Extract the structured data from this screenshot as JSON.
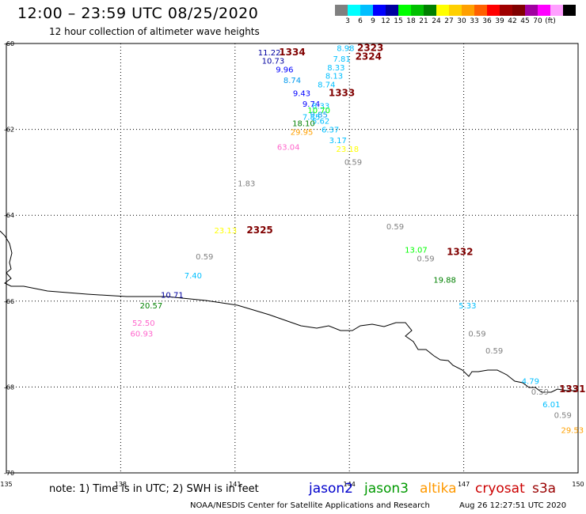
{
  "header": {
    "title": "12:00 – 23:59 UTC 08/25/2020",
    "subtitle": "12 hour collection of altimeter wave heights"
  },
  "legend": {
    "colors": [
      "#808080",
      "#00ffff",
      "#00bfff",
      "#0000ff",
      "#0000a0",
      "#00ff00",
      "#00c000",
      "#008000",
      "#ffff00",
      "#ffd000",
      "#ffa000",
      "#ff6000",
      "#ff0000",
      "#a00000",
      "#800000",
      "#a000a0",
      "#ff00ff",
      "#ffa0ff",
      "#000000"
    ],
    "labels": [
      "3",
      "6",
      "9",
      "12",
      "15",
      "18",
      "21",
      "24",
      "27",
      "30",
      "33",
      "36",
      "39",
      "42",
      "45",
      "70",
      "(ft)"
    ]
  },
  "footer": {
    "note": "note:  1) Time is in UTC;  2) SWH is in feet",
    "credit": "NOAA/NESDIS Center for Satellite Applications and Research",
    "timestamp": "Aug 26 12:27:51 UTC 2020",
    "missions": [
      {
        "name": "jason2",
        "color": "#0000cc"
      },
      {
        "name": "jason3",
        "color": "#009900"
      },
      {
        "name": "altika",
        "color": "#ff9900"
      },
      {
        "name": "cryosat",
        "color": "#cc0000"
      },
      {
        "name": "s3a",
        "color": "#990000"
      }
    ]
  },
  "chart_data": {
    "type": "scatter",
    "title": "12:00 – 23:59 UTC 08/25/2020",
    "subtitle": "12 hour collection of altimeter wave heights",
    "xlim": [
      135,
      150
    ],
    "ylim": [
      -70,
      -60
    ],
    "xticks": [
      "135",
      "138",
      "141",
      "144",
      "147",
      "150"
    ],
    "yticks": [
      "-60",
      "-62",
      "-64",
      "-66",
      "-68",
      "-70"
    ],
    "grid": true,
    "units": "ft",
    "swh_points": [
      {
        "lon": 141.9,
        "lat": -60.2,
        "value": "11.22",
        "color": "#0000a0"
      },
      {
        "lon": 142.0,
        "lat": -60.4,
        "value": "10.73",
        "color": "#0000a0"
      },
      {
        "lon": 142.3,
        "lat": -60.6,
        "value": "9.96",
        "color": "#0000ff"
      },
      {
        "lon": 142.5,
        "lat": -60.85,
        "value": "8.74",
        "color": "#0099ee"
      },
      {
        "lon": 142.75,
        "lat": -61.15,
        "value": "9.43",
        "color": "#0000ff"
      },
      {
        "lon": 143.0,
        "lat": -61.4,
        "value": "9.74",
        "color": "#0000ff"
      },
      {
        "lon": 143.25,
        "lat": -61.45,
        "value": "8.33",
        "color": "#00bfff"
      },
      {
        "lon": 143.2,
        "lat": -61.55,
        "value": "10.70",
        "color": "#00ff00"
      },
      {
        "lon": 143.2,
        "lat": -61.65,
        "value": "9.85",
        "color": "#0099ee"
      },
      {
        "lon": 143.0,
        "lat": -61.7,
        "value": "7.85",
        "color": "#00bfff"
      },
      {
        "lon": 143.25,
        "lat": -61.8,
        "value": "5.62",
        "color": "#00bfff"
      },
      {
        "lon": 142.8,
        "lat": -61.85,
        "value": "18.10",
        "color": "#008000"
      },
      {
        "lon": 143.5,
        "lat": -62.0,
        "value": "6.37",
        "color": "#00bfff"
      },
      {
        "lon": 142.75,
        "lat": -62.05,
        "value": "29.95",
        "color": "#ffa000"
      },
      {
        "lon": 143.7,
        "lat": -62.25,
        "value": "3.17",
        "color": "#00bfff"
      },
      {
        "lon": 142.4,
        "lat": -62.4,
        "value": "63.04",
        "color": "#ff66cc"
      },
      {
        "lon": 143.95,
        "lat": -62.45,
        "value": "23.18",
        "color": "#ffff00"
      },
      {
        "lon": 144.1,
        "lat": -62.75,
        "value": "0.59",
        "color": "#808080"
      },
      {
        "lon": 143.9,
        "lat": -60.1,
        "value": "8.98",
        "color": "#00bfff"
      },
      {
        "lon": 143.8,
        "lat": -60.35,
        "value": "7.81",
        "color": "#00bfff"
      },
      {
        "lon": 143.65,
        "lat": -60.55,
        "value": "8.33",
        "color": "#00bfff"
      },
      {
        "lon": 143.6,
        "lat": -60.75,
        "value": "8.13",
        "color": "#00bfff"
      },
      {
        "lon": 143.4,
        "lat": -60.95,
        "value": "8.74",
        "color": "#00bfff"
      },
      {
        "lon": 141.3,
        "lat": -63.25,
        "value": "1.83",
        "color": "#808080"
      },
      {
        "lon": 140.75,
        "lat": -64.35,
        "value": "23.13",
        "color": "#ffff00"
      },
      {
        "lon": 140.2,
        "lat": -64.95,
        "value": "0.59",
        "color": "#808080"
      },
      {
        "lon": 139.9,
        "lat": -65.4,
        "value": "7.40",
        "color": "#00bfff"
      },
      {
        "lon": 139.35,
        "lat": -65.85,
        "value": "10.71",
        "color": "#0000a0"
      },
      {
        "lon": 138.8,
        "lat": -66.1,
        "value": "20.57",
        "color": "#008000"
      },
      {
        "lon": 138.6,
        "lat": -66.5,
        "value": "52.50",
        "color": "#ff66cc"
      },
      {
        "lon": 138.55,
        "lat": -66.75,
        "value": "60.93",
        "color": "#ff66cc"
      },
      {
        "lon": 145.2,
        "lat": -64.25,
        "value": "0.59",
        "color": "#808080"
      },
      {
        "lon": 145.75,
        "lat": -64.8,
        "value": "13.07",
        "color": "#00ff00"
      },
      {
        "lon": 146.0,
        "lat": -65.0,
        "value": "0.59",
        "color": "#808080"
      },
      {
        "lon": 146.5,
        "lat": -65.5,
        "value": "19.88",
        "color": "#008000"
      },
      {
        "lon": 147.1,
        "lat": -66.1,
        "value": "5.33",
        "color": "#00bfff"
      },
      {
        "lon": 147.35,
        "lat": -66.75,
        "value": "0.59",
        "color": "#808080"
      },
      {
        "lon": 147.8,
        "lat": -67.15,
        "value": "0.59",
        "color": "#808080"
      },
      {
        "lon": 148.75,
        "lat": -67.85,
        "value": "4.79",
        "color": "#00bfff"
      },
      {
        "lon": 149.0,
        "lat": -68.1,
        "value": "0.59",
        "color": "#808080"
      },
      {
        "lon": 149.3,
        "lat": -68.4,
        "value": "6.01",
        "color": "#00bfff"
      },
      {
        "lon": 149.6,
        "lat": -68.65,
        "value": "0.59",
        "color": "#808080"
      },
      {
        "lon": 149.85,
        "lat": -69.0,
        "value": "29.53",
        "color": "#ffa000"
      }
    ],
    "pass_labels": [
      {
        "lon": 142.5,
        "lat": -60.2,
        "text": "1334",
        "color": "#800000"
      },
      {
        "lon": 144.55,
        "lat": -60.1,
        "text": "2323",
        "color": "#800000"
      },
      {
        "lon": 144.5,
        "lat": -60.3,
        "text": "2324",
        "color": "#800000"
      },
      {
        "lon": 143.8,
        "lat": -61.15,
        "text": "1333",
        "color": "#800000"
      },
      {
        "lon": 141.65,
        "lat": -64.35,
        "text": "2325",
        "color": "#800000"
      },
      {
        "lon": 146.9,
        "lat": -64.85,
        "text": "1332",
        "color": "#800000"
      },
      {
        "lon": 149.85,
        "lat": -68.05,
        "text": "1331",
        "color": "#800000"
      }
    ]
  }
}
